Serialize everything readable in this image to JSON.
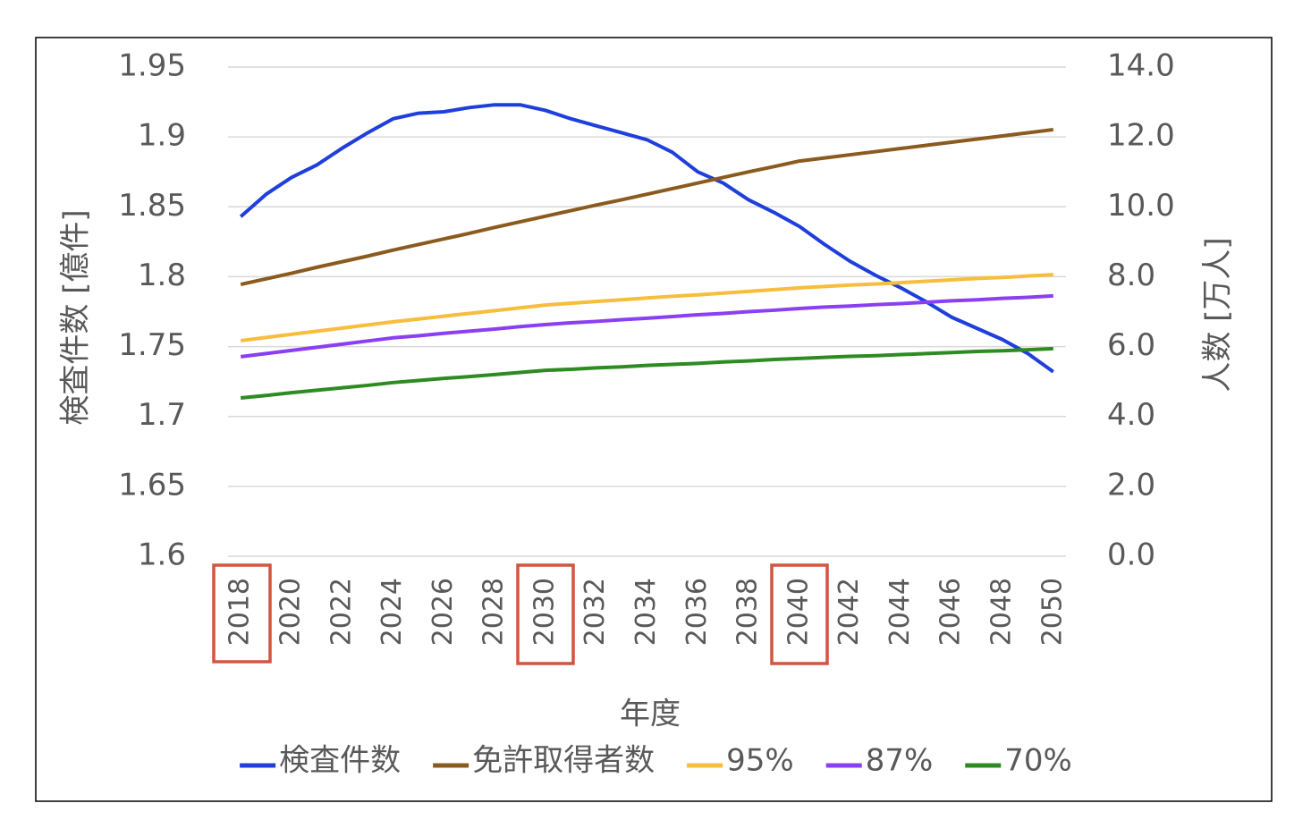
{
  "chart_data": {
    "type": "line",
    "x_label": "年度",
    "y_label": "検査件数 [億件]",
    "y2_label": "人数 [万人]",
    "x": [
      2018,
      2019,
      2020,
      2021,
      2022,
      2023,
      2024,
      2025,
      2026,
      2027,
      2028,
      2029,
      2030,
      2031,
      2032,
      2033,
      2034,
      2035,
      2036,
      2037,
      2038,
      2039,
      2040,
      2041,
      2042,
      2043,
      2044,
      2045,
      2046,
      2047,
      2048,
      2049,
      2050
    ],
    "xlim": [
      2017.5,
      2050.5
    ],
    "xticks": [
      2018,
      2020,
      2022,
      2024,
      2026,
      2028,
      2030,
      2032,
      2034,
      2036,
      2038,
      2040,
      2042,
      2044,
      2046,
      2048,
      2050
    ],
    "ylim": [
      1.6,
      1.95
    ],
    "yticks": [
      1.6,
      1.65,
      1.7,
      1.75,
      1.8,
      1.85,
      1.9,
      1.95
    ],
    "y2lim": [
      0,
      14
    ],
    "y2ticks": [
      {
        "value": 0,
        "label": "0.0"
      },
      {
        "value": 2,
        "label": "2.0"
      },
      {
        "value": 4,
        "label": "4.0"
      },
      {
        "value": 6,
        "label": "6.0"
      },
      {
        "value": 8,
        "label": "8.0"
      },
      {
        "value": 10,
        "label": "10.0"
      },
      {
        "value": 12,
        "label": "12.0"
      },
      {
        "value": 14,
        "label": "14.0"
      }
    ],
    "grid": true,
    "legend": "bottom",
    "series": [
      {
        "name": "検査件数",
        "color": "#1f3fdc",
        "values": [
          1.843,
          1.859,
          1.871,
          1.88,
          1.892,
          1.903,
          1.913,
          1.917,
          1.918,
          1.921,
          1.923,
          1.923,
          1.919,
          1.913,
          1.908,
          1.903,
          1.898,
          1.889,
          1.875,
          1.867,
          1.855,
          1.846,
          1.836,
          1.823,
          1.811,
          1.801,
          1.792,
          1.782,
          1.771,
          1.763,
          1.755,
          1.745,
          1.732
        ]
      },
      {
        "name": "免許取得者数",
        "color": "#8b5a1e",
        "axis": "y2",
        "values": [
          7.78,
          7.94,
          8.1,
          8.27,
          8.43,
          8.59,
          8.76,
          8.92,
          9.08,
          9.24,
          9.41,
          9.57,
          9.73,
          9.89,
          10.05,
          10.2,
          10.36,
          10.52,
          10.68,
          10.84,
          11.0,
          11.15,
          11.31,
          11.4,
          11.49,
          11.58,
          11.67,
          11.76,
          11.85,
          11.94,
          12.03,
          12.12,
          12.21
        ]
      },
      {
        "name": "95%",
        "color": "#f7bd3c",
        "axis": "y2",
        "values": [
          6.17,
          6.26,
          6.35,
          6.44,
          6.53,
          6.62,
          6.71,
          6.79,
          6.87,
          6.95,
          7.03,
          7.11,
          7.19,
          7.24,
          7.29,
          7.34,
          7.39,
          7.44,
          7.48,
          7.53,
          7.58,
          7.63,
          7.68,
          7.72,
          7.76,
          7.79,
          7.83,
          7.87,
          7.91,
          7.95,
          7.98,
          8.02,
          8.06
        ]
      },
      {
        "name": "87%",
        "color": "#8b3ff2",
        "axis": "y2",
        "values": [
          5.71,
          5.8,
          5.89,
          5.98,
          6.07,
          6.16,
          6.25,
          6.31,
          6.38,
          6.44,
          6.5,
          6.57,
          6.63,
          6.68,
          6.72,
          6.77,
          6.81,
          6.86,
          6.91,
          6.95,
          7.0,
          7.04,
          7.09,
          7.13,
          7.16,
          7.2,
          7.23,
          7.27,
          7.31,
          7.34,
          7.38,
          7.41,
          7.45
        ]
      },
      {
        "name": "70%",
        "color": "#2e8b22",
        "axis": "y2",
        "values": [
          4.53,
          4.6,
          4.68,
          4.75,
          4.82,
          4.89,
          4.97,
          5.03,
          5.09,
          5.14,
          5.2,
          5.26,
          5.32,
          5.35,
          5.39,
          5.42,
          5.46,
          5.49,
          5.52,
          5.56,
          5.59,
          5.63,
          5.66,
          5.69,
          5.72,
          5.74,
          5.77,
          5.8,
          5.83,
          5.86,
          5.88,
          5.91,
          5.94
        ]
      }
    ]
  }
}
